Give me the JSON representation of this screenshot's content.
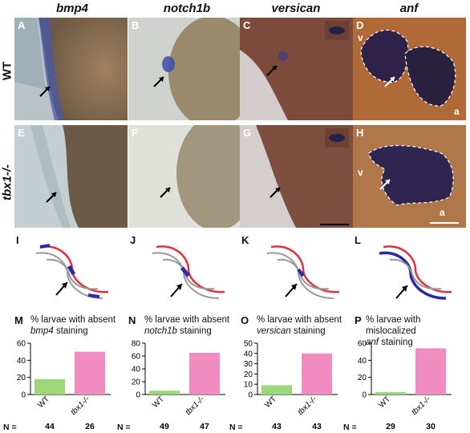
{
  "columns": [
    "bmp4",
    "notch1b",
    "versican",
    "anf"
  ],
  "rows": [
    "WT",
    "tbx1-/-"
  ],
  "panel_labels": {
    "top": [
      "A",
      "B",
      "C",
      "D"
    ],
    "bottom": [
      "E",
      "F",
      "G",
      "H"
    ],
    "schematics": [
      "I",
      "J",
      "K",
      "L"
    ],
    "charts": [
      "M",
      "N",
      "O",
      "P"
    ]
  },
  "chamber_labels": {
    "v": "v",
    "a": "a"
  },
  "n_row_label": "N =",
  "chart_data": [
    {
      "type": "bar",
      "panel": "M",
      "title_prefix": "% larvae with absent",
      "title_gene": "bmp4",
      "title_suffix": "staining",
      "categories": [
        "WT",
        "tbx1-/-"
      ],
      "values": [
        18,
        50
      ],
      "n": [
        "44",
        "26"
      ],
      "ylim": [
        0,
        60
      ],
      "yticks": [
        "0",
        "20",
        "40",
        "60"
      ],
      "colors": [
        "#9ed67a",
        "#f08cbf"
      ]
    },
    {
      "type": "bar",
      "panel": "N",
      "title_prefix": "% larvae with absent",
      "title_gene": "notch1b",
      "title_suffix": "staining",
      "categories": [
        "WT",
        "tbx1-/-"
      ],
      "values": [
        6,
        65
      ],
      "n": [
        "49",
        "47"
      ],
      "ylim": [
        0,
        80
      ],
      "yticks": [
        "0",
        "20",
        "40",
        "60",
        "80"
      ],
      "colors": [
        "#9ed67a",
        "#f08cbf"
      ]
    },
    {
      "type": "bar",
      "panel": "O",
      "title_prefix": "% larvae with absent",
      "title_gene": "versican",
      "title_suffix": "staining",
      "categories": [
        "WT",
        "tbx1-/-"
      ],
      "values": [
        9,
        40
      ],
      "n": [
        "43",
        "43"
      ],
      "ylim": [
        0,
        50
      ],
      "yticks": [
        "0",
        "10",
        "20",
        "30",
        "40",
        "50"
      ],
      "colors": [
        "#9ed67a",
        "#f08cbf"
      ]
    },
    {
      "type": "bar",
      "panel": "P",
      "title_prefix": "% larvae with mislocalized",
      "title_gene": "anf",
      "title_suffix": "staining",
      "categories": [
        "WT",
        "tbx1-/-"
      ],
      "values": [
        3,
        54
      ],
      "n": [
        "29",
        "30"
      ],
      "ylim": [
        0,
        60
      ],
      "yticks": [
        "0",
        "20",
        "40",
        "60"
      ],
      "colors": [
        "#9ed67a",
        "#f08cbf"
      ]
    }
  ]
}
